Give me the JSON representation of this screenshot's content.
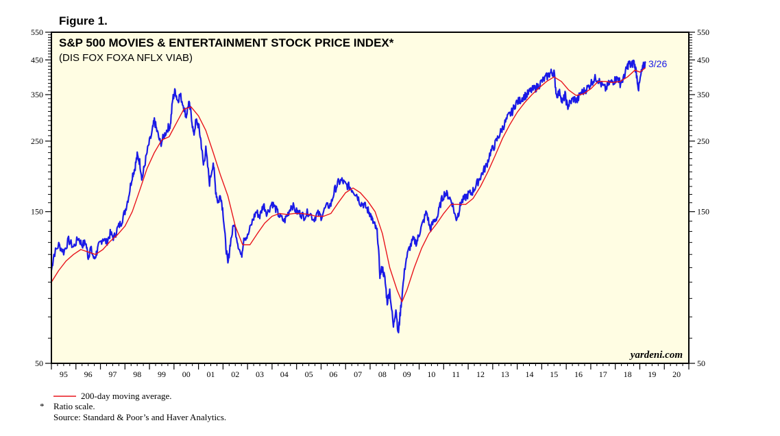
{
  "figure_label": "Figure 1.",
  "chart_data": {
    "type": "line",
    "title": "S&P 500 MOVIES & ENTERTAINMENT STOCK PRICE INDEX*",
    "subtitle": "(DIS FOX FOXA NFLX VIAB)",
    "y_scale": "log",
    "ylim": [
      50,
      550
    ],
    "xlim": [
      1995.0,
      2021.0
    ],
    "y_ticks_labeled": [
      50,
      150,
      250,
      350,
      450,
      550
    ],
    "y_ticks_unlabeled": [
      60,
      70,
      80,
      90,
      100,
      110,
      120,
      130,
      140,
      160,
      170,
      180,
      190,
      200,
      210,
      220,
      230,
      240,
      260,
      270,
      280,
      290,
      300,
      310,
      320,
      330,
      340,
      360,
      370,
      380,
      390,
      400,
      410,
      420,
      430,
      440,
      460,
      470,
      480,
      490,
      500,
      510,
      520,
      530,
      540
    ],
    "y_tick_labels": [
      "550",
      "450",
      "350",
      "250",
      "150",
      "50"
    ],
    "x_tick_labels": [
      "95",
      "96",
      "97",
      "98",
      "99",
      "00",
      "01",
      "02",
      "03",
      "04",
      "05",
      "06",
      "07",
      "08",
      "09",
      "10",
      "11",
      "12",
      "13",
      "14",
      "15",
      "16",
      "17",
      "18",
      "19",
      "20"
    ],
    "end_label": "3/26",
    "watermark": "yardeni.com",
    "legend": [
      {
        "label": "200-day moving average.",
        "color": "#e8141c"
      }
    ],
    "series": [
      {
        "name": "S&P 500 Movies & Entertainment Index",
        "color": "#1a1ae6",
        "points": [
          [
            1995.0,
            98
          ],
          [
            1995.1,
            110
          ],
          [
            1995.3,
            118
          ],
          [
            1995.5,
            112
          ],
          [
            1995.7,
            122
          ],
          [
            1995.9,
            116
          ],
          [
            1996.1,
            124
          ],
          [
            1996.25,
            118
          ],
          [
            1996.4,
            120
          ],
          [
            1996.5,
            108
          ],
          [
            1996.6,
            115
          ],
          [
            1996.75,
            106
          ],
          [
            1996.85,
            112
          ],
          [
            1996.95,
            118
          ],
          [
            1997.1,
            124
          ],
          [
            1997.25,
            120
          ],
          [
            1997.4,
            128
          ],
          [
            1997.55,
            124
          ],
          [
            1997.7,
            133
          ],
          [
            1997.85,
            139
          ],
          [
            1998.0,
            150
          ],
          [
            1998.15,
            168
          ],
          [
            1998.3,
            195
          ],
          [
            1998.4,
            205
          ],
          [
            1998.5,
            225
          ],
          [
            1998.6,
            215
          ],
          [
            1998.7,
            190
          ],
          [
            1998.8,
            210
          ],
          [
            1998.95,
            240
          ],
          [
            1999.1,
            265
          ],
          [
            1999.2,
            290
          ],
          [
            1999.3,
            270
          ],
          [
            1999.45,
            245
          ],
          [
            1999.6,
            260
          ],
          [
            1999.75,
            275
          ],
          [
            1999.85,
            280
          ],
          [
            1999.95,
            340
          ],
          [
            2000.05,
            360
          ],
          [
            2000.15,
            335
          ],
          [
            2000.25,
            350
          ],
          [
            2000.4,
            320
          ],
          [
            2000.5,
            300
          ],
          [
            2000.6,
            330
          ],
          [
            2000.7,
            305
          ],
          [
            2000.8,
            260
          ],
          [
            2000.9,
            290
          ],
          [
            2001.0,
            280
          ],
          [
            2001.1,
            250
          ],
          [
            2001.2,
            210
          ],
          [
            2001.3,
            235
          ],
          [
            2001.45,
            185
          ],
          [
            2001.6,
            215
          ],
          [
            2001.7,
            175
          ],
          [
            2001.8,
            160
          ],
          [
            2001.9,
            170
          ],
          [
            2002.0,
            150
          ],
          [
            2002.1,
            120
          ],
          [
            2002.2,
            102
          ],
          [
            2002.3,
            120
          ],
          [
            2002.45,
            138
          ],
          [
            2002.6,
            120
          ],
          [
            2002.75,
            108
          ],
          [
            2002.85,
            125
          ],
          [
            2003.0,
            125
          ],
          [
            2003.2,
            140
          ],
          [
            2003.35,
            150
          ],
          [
            2003.5,
            145
          ],
          [
            2003.65,
            158
          ],
          [
            2003.8,
            148
          ],
          [
            2004.0,
            160
          ],
          [
            2004.15,
            153
          ],
          [
            2004.3,
            145
          ],
          [
            2004.5,
            140
          ],
          [
            2004.65,
            148
          ],
          [
            2004.8,
            158
          ],
          [
            2005.0,
            150
          ],
          [
            2005.15,
            148
          ],
          [
            2005.3,
            145
          ],
          [
            2005.5,
            150
          ],
          [
            2005.7,
            142
          ],
          [
            2005.85,
            148
          ],
          [
            2006.0,
            145
          ],
          [
            2006.2,
            155
          ],
          [
            2006.4,
            158
          ],
          [
            2006.55,
            175
          ],
          [
            2006.7,
            185
          ],
          [
            2006.85,
            188
          ],
          [
            2007.0,
            182
          ],
          [
            2007.15,
            180
          ],
          [
            2007.3,
            175
          ],
          [
            2007.45,
            170
          ],
          [
            2007.6,
            160
          ],
          [
            2007.75,
            158
          ],
          [
            2007.9,
            152
          ],
          [
            2008.0,
            148
          ],
          [
            2008.1,
            140
          ],
          [
            2008.2,
            135
          ],
          [
            2008.3,
            128
          ],
          [
            2008.4,
            95
          ],
          [
            2008.5,
            100
          ],
          [
            2008.6,
            92
          ],
          [
            2008.7,
            78
          ],
          [
            2008.8,
            85
          ],
          [
            2008.95,
            65
          ],
          [
            2009.05,
            75
          ],
          [
            2009.15,
            62
          ],
          [
            2009.2,
            68
          ],
          [
            2009.3,
            82
          ],
          [
            2009.45,
            105
          ],
          [
            2009.6,
            115
          ],
          [
            2009.75,
            122
          ],
          [
            2009.9,
            120
          ],
          [
            2010.0,
            128
          ],
          [
            2010.15,
            138
          ],
          [
            2010.3,
            150
          ],
          [
            2010.45,
            132
          ],
          [
            2010.6,
            140
          ],
          [
            2010.75,
            145
          ],
          [
            2010.9,
            162
          ],
          [
            2011.05,
            172
          ],
          [
            2011.2,
            168
          ],
          [
            2011.35,
            160
          ],
          [
            2011.5,
            142
          ],
          [
            2011.6,
            148
          ],
          [
            2011.7,
            160
          ],
          [
            2011.85,
            165
          ],
          [
            2012.0,
            170
          ],
          [
            2012.15,
            172
          ],
          [
            2012.3,
            180
          ],
          [
            2012.45,
            190
          ],
          [
            2012.6,
            200
          ],
          [
            2012.75,
            210
          ],
          [
            2012.9,
            230
          ],
          [
            2013.05,
            240
          ],
          [
            2013.2,
            255
          ],
          [
            2013.35,
            270
          ],
          [
            2013.5,
            285
          ],
          [
            2013.65,
            300
          ],
          [
            2013.8,
            310
          ],
          [
            2013.95,
            330
          ],
          [
            2014.1,
            335
          ],
          [
            2014.25,
            345
          ],
          [
            2014.4,
            350
          ],
          [
            2014.55,
            360
          ],
          [
            2014.7,
            365
          ],
          [
            2014.85,
            372
          ],
          [
            2015.0,
            385
          ],
          [
            2015.15,
            395
          ],
          [
            2015.3,
            405
          ],
          [
            2015.4,
            412
          ],
          [
            2015.5,
            410
          ],
          [
            2015.6,
            350
          ],
          [
            2015.75,
            355
          ],
          [
            2015.85,
            330
          ],
          [
            2015.95,
            350
          ],
          [
            2016.05,
            320
          ],
          [
            2016.15,
            330
          ],
          [
            2016.3,
            340
          ],
          [
            2016.45,
            335
          ],
          [
            2016.6,
            355
          ],
          [
            2016.75,
            360
          ],
          [
            2016.9,
            370
          ],
          [
            2017.05,
            385
          ],
          [
            2017.2,
            395
          ],
          [
            2017.3,
            390
          ],
          [
            2017.45,
            375
          ],
          [
            2017.6,
            365
          ],
          [
            2017.75,
            380
          ],
          [
            2017.9,
            385
          ],
          [
            2018.0,
            390
          ],
          [
            2018.1,
            395
          ],
          [
            2018.2,
            380
          ],
          [
            2018.35,
            395
          ],
          [
            2018.45,
            420
          ],
          [
            2018.55,
            440
          ],
          [
            2018.65,
            430
          ],
          [
            2018.75,
            445
          ],
          [
            2018.85,
            415
          ],
          [
            2018.95,
            365
          ],
          [
            2019.05,
            405
          ],
          [
            2019.15,
            430
          ],
          [
            2019.23,
            440
          ]
        ]
      },
      {
        "name": "200-day moving average",
        "color": "#e8141c",
        "points": [
          [
            1995.0,
            90
          ],
          [
            1995.3,
            98
          ],
          [
            1995.6,
            105
          ],
          [
            1995.9,
            110
          ],
          [
            1996.2,
            114
          ],
          [
            1996.5,
            112
          ],
          [
            1996.8,
            110
          ],
          [
            1997.1,
            114
          ],
          [
            1997.4,
            121
          ],
          [
            1997.7,
            127
          ],
          [
            1998.0,
            135
          ],
          [
            1998.3,
            150
          ],
          [
            1998.6,
            175
          ],
          [
            1998.9,
            205
          ],
          [
            1999.2,
            230
          ],
          [
            1999.5,
            252
          ],
          [
            1999.8,
            258
          ],
          [
            2000.1,
            285
          ],
          [
            2000.4,
            315
          ],
          [
            2000.7,
            320
          ],
          [
            2001.0,
            300
          ],
          [
            2001.3,
            270
          ],
          [
            2001.6,
            230
          ],
          [
            2001.9,
            195
          ],
          [
            2002.2,
            168
          ],
          [
            2002.5,
            135
          ],
          [
            2002.8,
            118
          ],
          [
            2003.1,
            118
          ],
          [
            2003.4,
            128
          ],
          [
            2003.7,
            138
          ],
          [
            2004.0,
            145
          ],
          [
            2004.3,
            148
          ],
          [
            2004.6,
            147
          ],
          [
            2004.9,
            148
          ],
          [
            2005.2,
            148
          ],
          [
            2005.5,
            147
          ],
          [
            2005.8,
            145
          ],
          [
            2006.1,
            145
          ],
          [
            2006.4,
            148
          ],
          [
            2006.7,
            160
          ],
          [
            2007.0,
            172
          ],
          [
            2007.3,
            178
          ],
          [
            2007.6,
            172
          ],
          [
            2007.9,
            162
          ],
          [
            2008.2,
            150
          ],
          [
            2008.5,
            128
          ],
          [
            2008.8,
            100
          ],
          [
            2009.1,
            85
          ],
          [
            2009.3,
            78
          ],
          [
            2009.5,
            85
          ],
          [
            2009.8,
            100
          ],
          [
            2010.1,
            115
          ],
          [
            2010.4,
            128
          ],
          [
            2010.7,
            137
          ],
          [
            2011.0,
            148
          ],
          [
            2011.3,
            158
          ],
          [
            2011.6,
            158
          ],
          [
            2011.9,
            158
          ],
          [
            2012.2,
            165
          ],
          [
            2012.5,
            180
          ],
          [
            2012.8,
            200
          ],
          [
            2013.1,
            225
          ],
          [
            2013.4,
            255
          ],
          [
            2013.7,
            282
          ],
          [
            2014.0,
            308
          ],
          [
            2014.3,
            330
          ],
          [
            2014.6,
            350
          ],
          [
            2014.9,
            368
          ],
          [
            2015.2,
            385
          ],
          [
            2015.5,
            398
          ],
          [
            2015.8,
            385
          ],
          [
            2016.1,
            362
          ],
          [
            2016.4,
            348
          ],
          [
            2016.7,
            352
          ],
          [
            2017.0,
            365
          ],
          [
            2017.3,
            385
          ],
          [
            2017.6,
            385
          ],
          [
            2017.9,
            382
          ],
          [
            2018.2,
            385
          ],
          [
            2018.5,
            398
          ],
          [
            2018.8,
            418
          ],
          [
            2019.0,
            412
          ],
          [
            2019.23,
            425
          ]
        ]
      }
    ]
  },
  "footnotes": {
    "scale_marker": "*",
    "scale_note": "Ratio scale.",
    "source": "Source: Standard & Poor’s and Haver Analytics."
  }
}
